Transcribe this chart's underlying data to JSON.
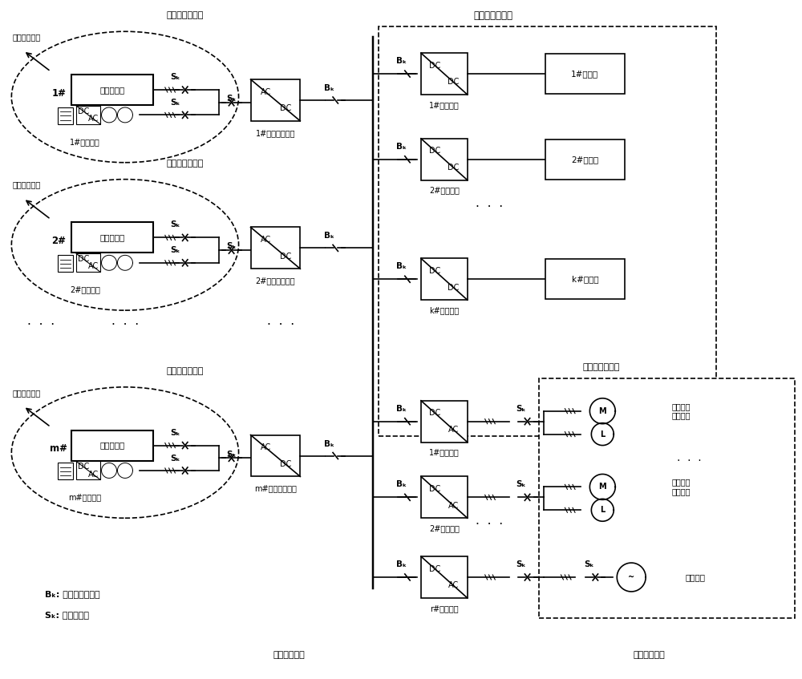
{
  "title": "",
  "bg_color": "#ffffff",
  "fig_width": 10.0,
  "fig_height": 8.47,
  "labels": {
    "mv_ac_subnet": "中压交流子网",
    "mv_ac_panel": "中压交流配电板",
    "mv_dc_panel": "中压直流配电板",
    "lv_ac_panel": "低压交流配电板",
    "new_energy_station": "新能源场站",
    "rectifier_labels": [
      "1#变压整流装置",
      "2#变压整流装置",
      "m#变压整流装置"
    ],
    "storage_labels": [
      "1#储能装置",
      "2#储能装置",
      "m#储能装置"
    ],
    "group_labels": [
      "1#",
      "2#",
      "m#"
    ],
    "h2_power_labels": [
      "1#制氢电源",
      "2#制氢电源",
      "k#制氢电源"
    ],
    "electrolyzer_labels": [
      "1#电解槽",
      "2#电解槽",
      "k#电解槽"
    ],
    "inverter_labels": [
      "1#逆变电源",
      "2#逆变电源",
      "r#逆变电源"
    ],
    "aux_load": "辅助生产\n用电负载",
    "backup_power": "备用电源",
    "Bk_desc": "Bₖ: 中压直流断路器",
    "Sk_desc": "Sₖ: 交流断路器",
    "mv_dc_main": "中压直流主网",
    "lv_ac_net": "低压交流网络",
    "Sk": "Sₖ",
    "Bk": "Bₖ"
  }
}
